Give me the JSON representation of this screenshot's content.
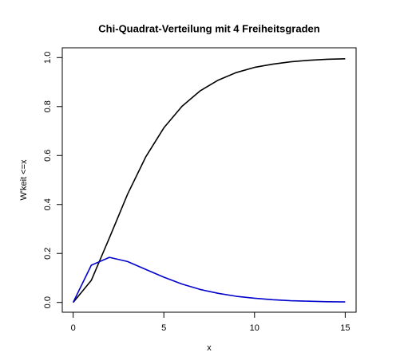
{
  "chart_data": {
    "type": "line",
    "title": "Chi-Quadrat-Verteilung mit 4 Freiheitsgraden",
    "x_label": "x",
    "y_label": "W'keit <=x",
    "x": [
      0,
      1,
      2,
      3,
      4,
      5,
      6,
      7,
      8,
      9,
      10,
      11,
      12,
      13,
      14,
      15
    ],
    "series": [
      {
        "color": "#000000",
        "values": [
          0,
          0.09,
          0.264,
          0.442,
          0.594,
          0.713,
          0.801,
          0.864,
          0.908,
          0.939,
          0.96,
          0.973,
          0.983,
          0.989,
          0.993,
          0.995
        ]
      },
      {
        "color": "#0000cc",
        "values": [
          0,
          0.152,
          0.184,
          0.167,
          0.135,
          0.103,
          0.075,
          0.053,
          0.037,
          0.025,
          0.017,
          0.011,
          0.007,
          0.005,
          0.003,
          0.002
        ]
      }
    ],
    "xlim": [
      -0.6,
      15.6
    ],
    "xticks": [
      0,
      5,
      10,
      15
    ],
    "ylim": [
      -0.04,
      1.04
    ],
    "yticks": [
      {
        "value": 0,
        "label": "0.0"
      },
      0.2,
      0.4,
      0.6,
      0.8,
      {
        "value": 1,
        "label": "1.0"
      }
    ]
  }
}
